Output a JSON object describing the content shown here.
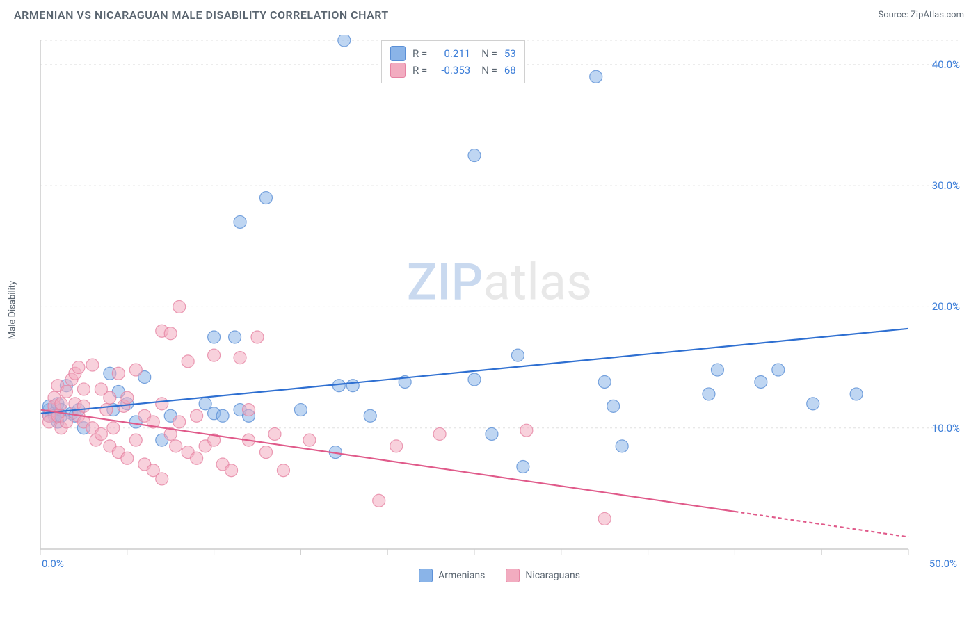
{
  "title": "ARMENIAN VS NICARAGUAN MALE DISABILITY CORRELATION CHART",
  "source": "Source: ZipAtlas.com",
  "y_axis_label": "Male Disability",
  "watermark_zip": "ZIP",
  "watermark_atlas": "atlas",
  "chart": {
    "type": "scatter",
    "background_color": "#ffffff",
    "grid_color": "#e0e0e0",
    "axis_color": "#cccccc",
    "tick_label_color": "#3b7dd8",
    "xlim": [
      0,
      50
    ],
    "ylim": [
      0,
      42
    ],
    "x_ticks_major": [
      0,
      50
    ],
    "x_ticks_minor": [
      5,
      10,
      15,
      20,
      25,
      30,
      35,
      40,
      45
    ],
    "y_ticks": [
      10,
      20,
      30,
      40
    ],
    "x_tick_labels": {
      "0": "0.0%",
      "50": "50.0%"
    },
    "y_tick_labels": {
      "10": "10.0%",
      "20": "20.0%",
      "30": "30.0%",
      "40": "40.0%"
    },
    "marker_radius": 9,
    "marker_opacity": 0.55,
    "line_width": 2.2,
    "series": [
      {
        "name": "Armenians",
        "color": "#8ab4e8",
        "stroke": "#5a8fd6",
        "line_color": "#2e6fd1",
        "R": "0.211",
        "N": "53",
        "trend": {
          "x1": 0,
          "y1": 11.2,
          "x2": 50,
          "y2": 18.2
        },
        "points": [
          [
            0.5,
            11.5
          ],
          [
            0.5,
            11.0
          ],
          [
            0.5,
            11.8
          ],
          [
            0.8,
            11.2
          ],
          [
            0.8,
            11.0
          ],
          [
            1.0,
            10.5
          ],
          [
            1.0,
            12.0
          ],
          [
            1.2,
            11.5
          ],
          [
            1.2,
            11.0
          ],
          [
            1.5,
            13.5
          ],
          [
            1.8,
            11.2
          ],
          [
            2.0,
            11.0
          ],
          [
            2.2,
            11.5
          ],
          [
            2.5,
            10.0
          ],
          [
            4.0,
            14.5
          ],
          [
            4.2,
            11.5
          ],
          [
            4.5,
            13.0
          ],
          [
            5.0,
            12.0
          ],
          [
            5.5,
            10.5
          ],
          [
            6.0,
            14.2
          ],
          [
            7.0,
            9.0
          ],
          [
            7.5,
            11.0
          ],
          [
            9.5,
            12.0
          ],
          [
            10.0,
            11.2
          ],
          [
            10.0,
            17.5
          ],
          [
            10.5,
            11.0
          ],
          [
            11.2,
            17.5
          ],
          [
            11.5,
            27.0
          ],
          [
            11.5,
            11.5
          ],
          [
            12.0,
            11.0
          ],
          [
            13.0,
            29.0
          ],
          [
            15.0,
            11.5
          ],
          [
            17.0,
            8.0
          ],
          [
            17.2,
            13.5
          ],
          [
            17.5,
            42.0
          ],
          [
            18.0,
            13.5
          ],
          [
            19.0,
            11.0
          ],
          [
            21.0,
            13.8
          ],
          [
            25.0,
            32.5
          ],
          [
            25.0,
            14.0
          ],
          [
            26.0,
            9.5
          ],
          [
            27.5,
            16.0
          ],
          [
            27.8,
            6.8
          ],
          [
            32.0,
            39.0
          ],
          [
            32.5,
            13.8
          ],
          [
            33.0,
            11.8
          ],
          [
            33.5,
            8.5
          ],
          [
            38.5,
            12.8
          ],
          [
            39.0,
            14.8
          ],
          [
            41.5,
            13.8
          ],
          [
            42.5,
            14.8
          ],
          [
            44.5,
            12.0
          ],
          [
            47.0,
            12.8
          ]
        ]
      },
      {
        "name": "Nicaraguans",
        "color": "#f2acc0",
        "stroke": "#e683a3",
        "line_color": "#e05a8a",
        "R": "-0.353",
        "N": "68",
        "trend": {
          "x1": 0,
          "y1": 11.5,
          "x2": 50,
          "y2": 1.0
        },
        "trend_solid_to": 40,
        "points": [
          [
            0.5,
            11.0
          ],
          [
            0.5,
            10.5
          ],
          [
            0.8,
            12.5
          ],
          [
            0.8,
            11.8
          ],
          [
            1.0,
            13.5
          ],
          [
            1.0,
            11.0
          ],
          [
            1.2,
            10.0
          ],
          [
            1.2,
            12.0
          ],
          [
            1.5,
            13.0
          ],
          [
            1.5,
            10.5
          ],
          [
            1.8,
            14.0
          ],
          [
            2.0,
            12.0
          ],
          [
            2.0,
            14.5
          ],
          [
            2.2,
            11.0
          ],
          [
            2.2,
            15.0
          ],
          [
            2.5,
            10.5
          ],
          [
            2.5,
            13.2
          ],
          [
            2.5,
            11.8
          ],
          [
            3.0,
            10.0
          ],
          [
            3.0,
            15.2
          ],
          [
            3.2,
            9.0
          ],
          [
            3.5,
            13.2
          ],
          [
            3.5,
            9.5
          ],
          [
            3.8,
            11.5
          ],
          [
            4.0,
            8.5
          ],
          [
            4.0,
            12.5
          ],
          [
            4.2,
            10.0
          ],
          [
            4.5,
            14.5
          ],
          [
            4.5,
            8.0
          ],
          [
            4.8,
            11.8
          ],
          [
            5.0,
            12.5
          ],
          [
            5.0,
            7.5
          ],
          [
            5.5,
            9.0
          ],
          [
            5.5,
            14.8
          ],
          [
            6.0,
            11.0
          ],
          [
            6.0,
            7.0
          ],
          [
            6.5,
            10.5
          ],
          [
            6.5,
            6.5
          ],
          [
            7.0,
            12.0
          ],
          [
            7.0,
            18.0
          ],
          [
            7.0,
            5.8
          ],
          [
            7.5,
            9.5
          ],
          [
            7.5,
            17.8
          ],
          [
            7.8,
            8.5
          ],
          [
            8.0,
            20.0
          ],
          [
            8.0,
            10.5
          ],
          [
            8.5,
            15.5
          ],
          [
            8.5,
            8.0
          ],
          [
            9.0,
            7.5
          ],
          [
            9.0,
            11.0
          ],
          [
            9.5,
            8.5
          ],
          [
            10.0,
            16.0
          ],
          [
            10.0,
            9.0
          ],
          [
            10.5,
            7.0
          ],
          [
            11.0,
            6.5
          ],
          [
            11.5,
            15.8
          ],
          [
            12.0,
            9.0
          ],
          [
            12.0,
            11.5
          ],
          [
            12.5,
            17.5
          ],
          [
            13.0,
            8.0
          ],
          [
            13.5,
            9.5
          ],
          [
            14.0,
            6.5
          ],
          [
            15.5,
            9.0
          ],
          [
            19.5,
            4.0
          ],
          [
            20.5,
            8.5
          ],
          [
            23.0,
            9.5
          ],
          [
            28.0,
            9.8
          ],
          [
            32.5,
            2.5
          ]
        ]
      }
    ]
  },
  "legend": {
    "r_label": "R =",
    "n_label": "N ="
  },
  "bottom_legend": [
    "Armenians",
    "Nicaraguans"
  ]
}
